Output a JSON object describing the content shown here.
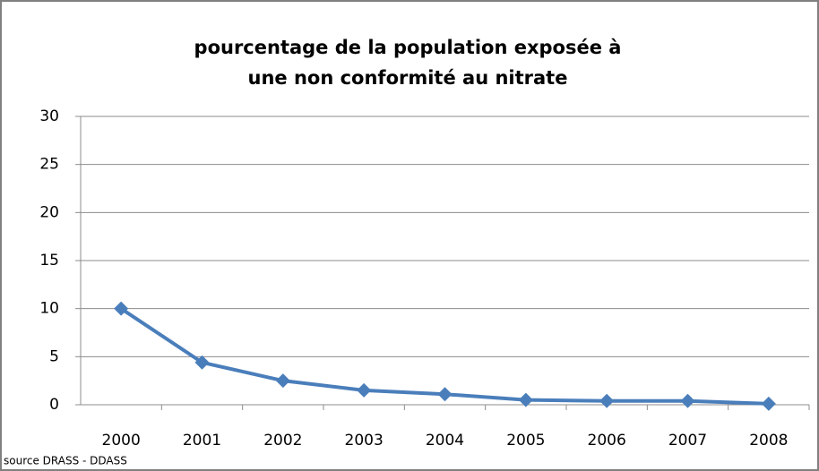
{
  "chart_data": {
    "type": "line",
    "title": "pourcentage de la population exposée à une non conformité au nitrate",
    "source": "source DRASS - DDASS",
    "categories": [
      "2000",
      "2001",
      "2002",
      "2003",
      "2004",
      "2005",
      "2006",
      "2007",
      "2008"
    ],
    "values": [
      10,
      4.4,
      2.5,
      1.5,
      1.1,
      0.5,
      0.4,
      0.4,
      0.1
    ],
    "color": "#4a7ebb",
    "ylim": [
      0,
      30
    ],
    "yticks": [
      0,
      5,
      10,
      15,
      20,
      25,
      30
    ],
    "grid": true
  }
}
